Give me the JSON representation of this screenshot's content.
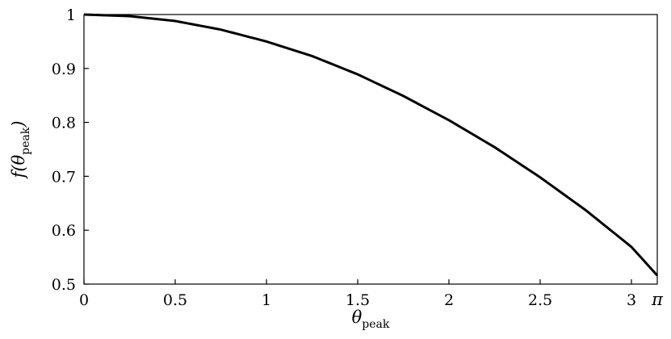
{
  "chart_data": {
    "type": "line",
    "xlabel_main": "θ",
    "xlabel_sub": "peak",
    "ylabel_func": "f(",
    "ylabel_var": "θ",
    "ylabel_sub": "peak",
    "ylabel_close": ")",
    "xlim": [
      0,
      3.14159
    ],
    "ylim": [
      0.5,
      1.0
    ],
    "xticks": [
      {
        "value": 0,
        "label": "0"
      },
      {
        "value": 0.5,
        "label": "0.5"
      },
      {
        "value": 1,
        "label": "1"
      },
      {
        "value": 1.5,
        "label": "1.5"
      },
      {
        "value": 2,
        "label": "2"
      },
      {
        "value": 2.5,
        "label": "2.5"
      },
      {
        "value": 3,
        "label": "3"
      }
    ],
    "pi_tick": {
      "value": 3.14159,
      "label": "π"
    },
    "yticks": [
      {
        "value": 0.5,
        "label": "0.5"
      },
      {
        "value": 0.6,
        "label": "0.6"
      },
      {
        "value": 0.7,
        "label": "0.7"
      },
      {
        "value": 0.8,
        "label": "0.8"
      },
      {
        "value": 0.9,
        "label": "0.9"
      },
      {
        "value": 1.0,
        "label": "1"
      }
    ],
    "grid": false,
    "series": [
      {
        "color": "#000000",
        "x": [
          0,
          0.25,
          0.5,
          0.75,
          1.0,
          1.25,
          1.5,
          1.75,
          2.0,
          2.25,
          2.5,
          2.75,
          3.0,
          3.14159
        ],
        "y": [
          1.0,
          0.997,
          0.988,
          0.972,
          0.95,
          0.923,
          0.889,
          0.849,
          0.804,
          0.754,
          0.698,
          0.637,
          0.569,
          0.516
        ]
      }
    ]
  }
}
